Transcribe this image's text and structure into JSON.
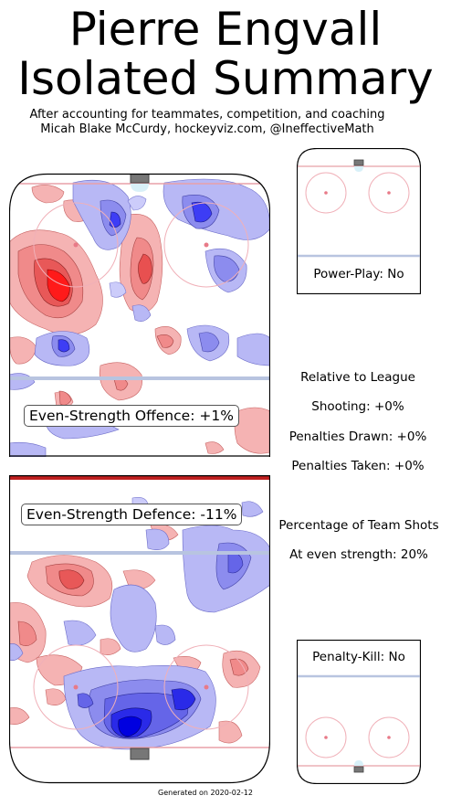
{
  "title_line1": "Pierre Engvall",
  "title_line2": "Isolated Summary",
  "subtitle_line1": "After accounting for teammates, competition, and coaching",
  "subtitle_line2": "Micah Blake McCurdy, hockeyviz.com, @IneffectiveMath",
  "offence_label": "Even-Strength Offence: +1%",
  "defence_label": "Even-Strength Defence: -11%",
  "powerplay_label": "Power-Play: No",
  "penaltykill_label": "Penalty-Kill: No",
  "relative_heading": "Relative to League",
  "shooting": "Shooting: +0%",
  "penalties_drawn": "Penalties Drawn: +0%",
  "penalties_taken": "Penalties Taken: +0%",
  "team_shots_heading": "Percentage of Team Shots",
  "team_shots_value": "At even strength: 20%",
  "footer": "Generated on 2020-02-12",
  "colors": {
    "above_league": "#e8262a",
    "below_league": "#2222dd",
    "rink_outline": "#000000",
    "blue_line": "#b8c4e0",
    "goal_line": "#e8a0a8"
  },
  "chart_data": [
    {
      "type": "heatmap",
      "name": "Even-Strength Offence",
      "value_label": "Even-Strength Offence: +1%",
      "hotspots": [
        {
          "region": "left faceoff circle / slot",
          "sign": "positive",
          "intensity": "high"
        },
        {
          "region": "right of slot",
          "sign": "positive",
          "intensity": "high"
        },
        {
          "region": "right faceoff circle",
          "sign": "negative",
          "intensity": "high"
        },
        {
          "region": "center near blue line",
          "sign": "negative",
          "intensity": "medium"
        }
      ]
    },
    {
      "type": "heatmap",
      "name": "Even-Strength Defence",
      "value_label": "Even-Strength Defence: -11%",
      "hotspots": [
        {
          "region": "slot in front of net",
          "sign": "negative",
          "intensity": "high"
        },
        {
          "region": "left point",
          "sign": "positive",
          "intensity": "medium"
        },
        {
          "region": "right faceoff circle",
          "sign": "negative",
          "intensity": "medium"
        }
      ]
    }
  ]
}
